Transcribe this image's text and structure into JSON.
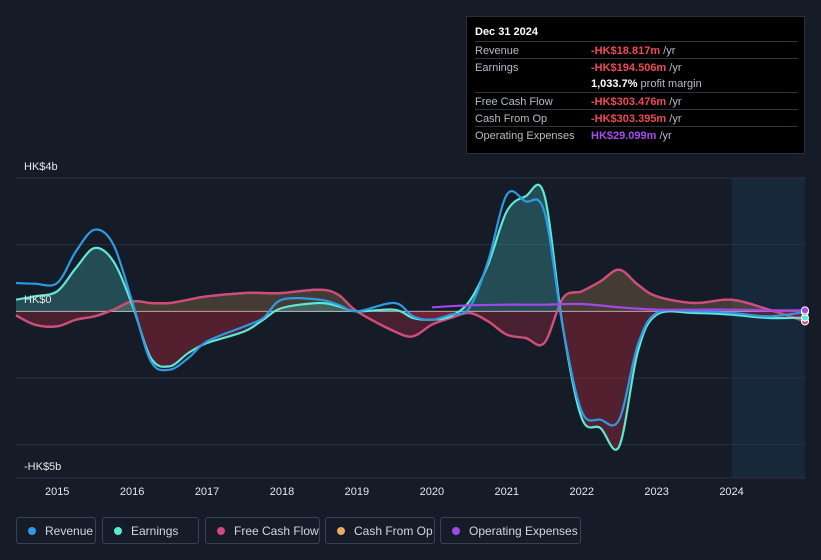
{
  "tooltip": {
    "date": "Dec 31 2024",
    "rows": [
      {
        "label": "Revenue",
        "value": "-HK$18.817m",
        "unit": "/yr"
      },
      {
        "label": "Earnings",
        "value": "-HK$194.506m",
        "unit": "/yr"
      },
      {
        "label": "",
        "value": "1,033.7%",
        "unit": "profit margin"
      },
      {
        "label": "Free Cash Flow",
        "value": "-HK$303.476m",
        "unit": "/yr"
      },
      {
        "label": "Cash From Op",
        "value": "-HK$303.395m",
        "unit": "/yr"
      },
      {
        "label": "Operating Expenses",
        "value": "HK$29.099m",
        "unit": "/yr"
      }
    ]
  },
  "colors": {
    "revenue": "#2d9ae3",
    "earnings": "#5de8d3",
    "free_cash_flow": "#d2497f",
    "cash_from_op": "#eba764",
    "operating_expenses": "#a348e8",
    "negative_text": "#ef4b55"
  },
  "legend": [
    {
      "key": "revenue",
      "label": "Revenue"
    },
    {
      "key": "earnings",
      "label": "Earnings"
    },
    {
      "key": "free_cash_flow",
      "label": "Free Cash Flow"
    },
    {
      "key": "cash_from_op",
      "label": "Cash From Op"
    },
    {
      "key": "operating_expenses",
      "label": "Operating Expenses"
    }
  ],
  "chart_data": {
    "type": "area",
    "title": "",
    "y_unit": "HK$ billions",
    "ylim": [
      -5,
      4
    ],
    "y_axis_labels": [
      {
        "value": 4,
        "label": "HK$4b"
      },
      {
        "value": 0,
        "label": "HK$0"
      },
      {
        "value": -5,
        "label": "-HK$5b"
      }
    ],
    "y_gridlines": [
      4,
      2,
      0,
      -2,
      -4
    ],
    "xlim": [
      2014.45,
      2024.98
    ],
    "x_ticks": [
      {
        "value": 2015,
        "label": "2015"
      },
      {
        "value": 2016,
        "label": "2016"
      },
      {
        "value": 2017,
        "label": "2017"
      },
      {
        "value": 2018,
        "label": "2018"
      },
      {
        "value": 2019,
        "label": "2019"
      },
      {
        "value": 2020,
        "label": "2020"
      },
      {
        "value": 2021,
        "label": "2021"
      },
      {
        "value": 2022,
        "label": "2022"
      },
      {
        "value": 2023,
        "label": "2023"
      },
      {
        "value": 2024,
        "label": "2024"
      }
    ],
    "highlight_from": 2024.0,
    "series": [
      {
        "key": "revenue",
        "name": "Revenue",
        "x": [
          2014.45,
          2014.7,
          2015.0,
          2015.25,
          2015.5,
          2015.75,
          2016.0,
          2016.25,
          2016.5,
          2016.75,
          2017.0,
          2017.5,
          2017.75,
          2018.0,
          2018.5,
          2018.75,
          2019.0,
          2019.5,
          2019.75,
          2020.0,
          2020.25,
          2020.5,
          2020.75,
          2021.0,
          2021.25,
          2021.5,
          2021.75,
          2022.0,
          2022.25,
          2022.5,
          2022.75,
          2023.0,
          2023.5,
          2024.0,
          2024.5,
          2024.98
        ],
        "values": [
          0.85,
          0.83,
          0.85,
          1.8,
          2.45,
          2.0,
          0.3,
          -1.5,
          -1.75,
          -1.4,
          -0.9,
          -0.45,
          -0.2,
          0.35,
          0.35,
          0.2,
          0.0,
          0.25,
          -0.15,
          -0.25,
          -0.1,
          0.1,
          1.5,
          3.5,
          3.3,
          3.0,
          -0.5,
          -3.0,
          -3.25,
          -3.25,
          -1.0,
          -0.05,
          0.0,
          -0.05,
          -0.15,
          -0.02
        ]
      },
      {
        "key": "earnings",
        "name": "Earnings",
        "x": [
          2014.45,
          2014.7,
          2015.0,
          2015.25,
          2015.5,
          2015.75,
          2016.0,
          2016.25,
          2016.5,
          2016.75,
          2017.0,
          2017.5,
          2017.75,
          2018.0,
          2018.5,
          2018.75,
          2019.0,
          2019.5,
          2019.75,
          2020.0,
          2020.25,
          2020.5,
          2020.75,
          2021.0,
          2021.25,
          2021.5,
          2021.75,
          2022.0,
          2022.25,
          2022.5,
          2022.75,
          2023.0,
          2023.5,
          2024.0,
          2024.5,
          2024.98
        ],
        "values": [
          0.35,
          0.45,
          0.6,
          1.3,
          1.9,
          1.5,
          0.2,
          -1.4,
          -1.65,
          -1.25,
          -0.95,
          -0.6,
          -0.25,
          0.1,
          0.25,
          0.15,
          0.0,
          0.05,
          -0.2,
          -0.25,
          -0.15,
          0.3,
          1.4,
          3.0,
          3.45,
          3.5,
          -0.5,
          -3.2,
          -3.5,
          -4.05,
          -1.2,
          -0.1,
          -0.05,
          -0.1,
          -0.2,
          -0.19
        ]
      },
      {
        "key": "free_cash_flow",
        "name": "Free Cash Flow",
        "x": [
          2014.45,
          2014.7,
          2015.0,
          2015.25,
          2015.5,
          2015.75,
          2016.0,
          2016.25,
          2016.5,
          2016.75,
          2017.0,
          2017.5,
          2017.75,
          2018.0,
          2018.5,
          2018.75,
          2019.0,
          2019.5,
          2019.75,
          2020.0,
          2020.25,
          2020.5,
          2020.75,
          2021.0,
          2021.25,
          2021.5,
          2021.75,
          2022.0,
          2022.25,
          2022.5,
          2022.75,
          2023.0,
          2023.5,
          2024.0,
          2024.5,
          2024.98
        ],
        "values": [
          -0.12,
          -0.4,
          -0.45,
          -0.25,
          -0.15,
          0.05,
          0.3,
          0.25,
          0.25,
          0.35,
          0.45,
          0.55,
          0.55,
          0.55,
          0.65,
          0.5,
          0.0,
          -0.6,
          -0.75,
          -0.4,
          -0.2,
          -0.05,
          -0.3,
          -0.7,
          -0.8,
          -0.95,
          0.4,
          0.6,
          0.9,
          1.25,
          0.8,
          0.45,
          0.25,
          0.35,
          0.05,
          -0.3
        ]
      },
      {
        "key": "cash_from_op",
        "name": "Cash From Op",
        "x": [
          2014.45,
          2014.7,
          2015.0,
          2015.25,
          2015.5,
          2015.75,
          2016.0,
          2016.25,
          2016.5,
          2016.75,
          2017.0,
          2017.5,
          2017.75,
          2018.0,
          2018.5,
          2018.75,
          2019.0,
          2019.5,
          2019.75,
          2020.0,
          2020.25,
          2020.5,
          2020.75,
          2021.0,
          2021.25,
          2021.5,
          2021.75,
          2022.0,
          2022.25,
          2022.5,
          2022.75,
          2023.0,
          2023.5,
          2024.0,
          2024.5,
          2024.98
        ],
        "values": [
          -0.12,
          -0.4,
          -0.45,
          -0.25,
          -0.15,
          0.05,
          0.3,
          0.25,
          0.25,
          0.35,
          0.45,
          0.55,
          0.55,
          0.55,
          0.65,
          0.5,
          0.0,
          -0.6,
          -0.75,
          -0.4,
          -0.2,
          -0.05,
          -0.3,
          -0.7,
          -0.8,
          -0.95,
          0.4,
          0.6,
          0.9,
          1.25,
          0.8,
          0.45,
          0.25,
          0.35,
          0.05,
          -0.3
        ]
      },
      {
        "key": "operating_expenses",
        "name": "Operating Expenses",
        "x": [
          2020.0,
          2020.5,
          2021.0,
          2021.5,
          2022.0,
          2022.5,
          2023.0,
          2023.5,
          2024.0,
          2024.5,
          2024.98
        ],
        "values": [
          0.12,
          0.18,
          0.2,
          0.2,
          0.22,
          0.12,
          0.05,
          0.05,
          0.05,
          0.03,
          0.03
        ]
      }
    ]
  }
}
